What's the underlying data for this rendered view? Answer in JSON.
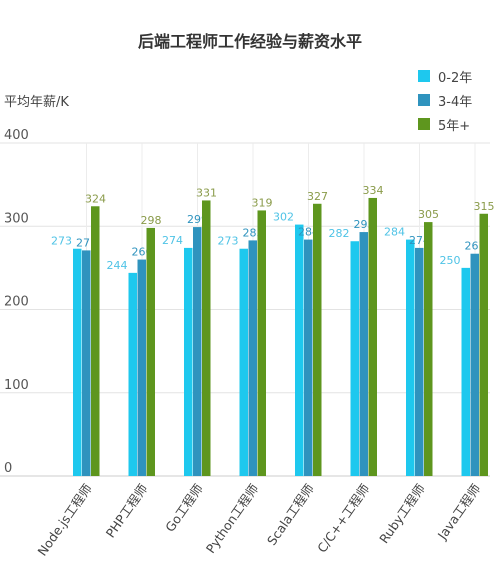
{
  "chart_data": {
    "type": "bar",
    "title": "后端工程师工作经验与薪资水平",
    "ylabel": "平均年薪/K",
    "xlabel": "",
    "ylim": [
      0,
      400
    ],
    "yticks": [
      "0",
      "100",
      "200",
      "300",
      "400"
    ],
    "grid": true,
    "legend_position": "top-right",
    "categories": [
      "Node.js工程师",
      "PHP工程师",
      "Go工程师",
      "Python工程师",
      "Scala工程师",
      "C/C++工程师",
      "Ruby工程师",
      "Java工程师"
    ],
    "series": [
      {
        "name": "0-2年",
        "color": "#1EC8EE",
        "label_color": "#4FC3E6",
        "values": [
          273,
          244,
          274,
          273,
          302,
          282,
          284,
          250
        ]
      },
      {
        "name": "3-4年",
        "color": "#2F93BE",
        "label_color": "#2F93BE",
        "values": [
          271,
          260,
          299,
          283,
          284,
          293,
          274,
          267
        ]
      },
      {
        "name": "5年+",
        "color": "#5E961E",
        "label_color": "#8A9B4A",
        "values": [
          324,
          298,
          331,
          319,
          327,
          334,
          305,
          315
        ]
      }
    ]
  }
}
